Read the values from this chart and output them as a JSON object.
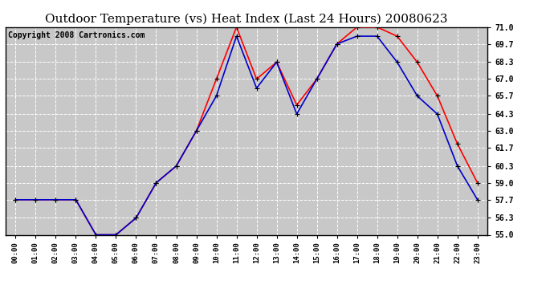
{
  "title": "Outdoor Temperature (vs) Heat Index (Last 24 Hours) 20080623",
  "copyright": "Copyright 2008 Cartronics.com",
  "x_labels": [
    "00:00",
    "01:00",
    "02:00",
    "03:00",
    "04:00",
    "05:00",
    "06:00",
    "07:00",
    "08:00",
    "09:00",
    "10:00",
    "11:00",
    "12:00",
    "13:00",
    "14:00",
    "15:00",
    "16:00",
    "17:00",
    "18:00",
    "19:00",
    "20:00",
    "21:00",
    "22:00",
    "23:00"
  ],
  "temp_red": [
    57.7,
    57.7,
    57.7,
    57.7,
    55.0,
    55.0,
    56.3,
    59.0,
    60.3,
    63.0,
    67.0,
    71.0,
    67.0,
    68.3,
    65.0,
    67.0,
    69.7,
    71.0,
    71.0,
    70.3,
    68.3,
    65.7,
    62.0,
    59.0
  ],
  "heat_blue": [
    57.7,
    57.7,
    57.7,
    57.7,
    55.0,
    55.0,
    56.3,
    59.0,
    60.3,
    63.0,
    65.7,
    70.3,
    66.3,
    68.3,
    64.3,
    67.0,
    69.7,
    70.3,
    70.3,
    68.3,
    65.7,
    64.3,
    60.3,
    57.7
  ],
  "ylim": [
    55.0,
    71.0
  ],
  "yticks": [
    55.0,
    56.3,
    57.7,
    59.0,
    60.3,
    61.7,
    63.0,
    64.3,
    65.7,
    67.0,
    68.3,
    69.7,
    71.0
  ],
  "red_color": "#FF0000",
  "blue_color": "#0000CC",
  "background_color": "#C8C8C8",
  "grid_color": "#FFFFFF",
  "title_fontsize": 11,
  "copyright_fontsize": 7
}
